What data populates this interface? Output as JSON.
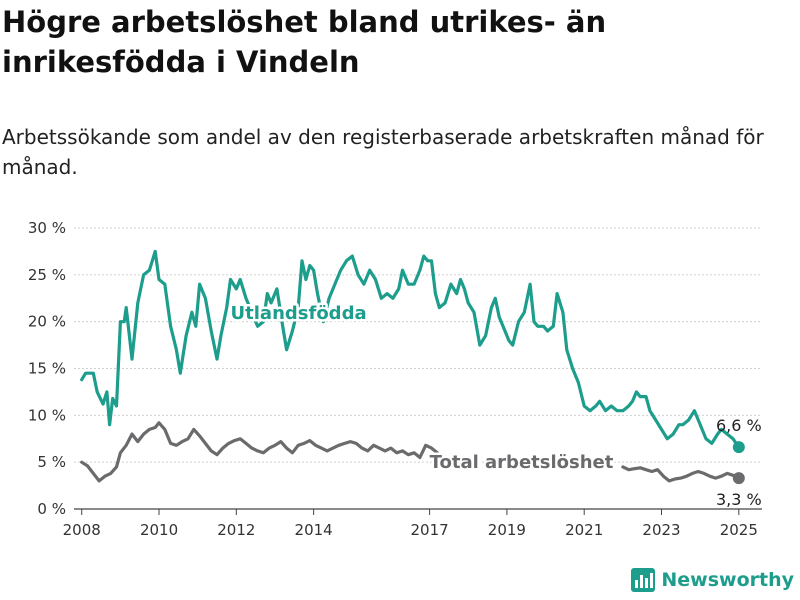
{
  "title": "Högre arbetslöshet bland utrikes- än inrikesfödda i Vindeln",
  "subtitle": "Arbetssökande som andel av den registerbaserade arbetskraften månad för månad.",
  "logo_text": "Newsworthy",
  "logo_icon": "bar-chart-icon",
  "chart_data": {
    "type": "line",
    "title": "",
    "xlabel": "",
    "ylabel": "",
    "ylim": [
      0,
      30
    ],
    "xlim": [
      2007.8,
      2025.6
    ],
    "yticks": [
      0,
      5,
      10,
      15,
      20,
      25,
      30
    ],
    "ytick_labels": [
      "0 %",
      "5 %",
      "10 %",
      "15 %",
      "20 %",
      "25 %",
      "30 %"
    ],
    "xticks": [
      2008,
      2010,
      2012,
      2014,
      2017,
      2019,
      2021,
      2023,
      2025
    ],
    "xtick_labels": [
      "2008",
      "2010",
      "2012",
      "2014",
      "2017",
      "2019",
      "2021",
      "2023",
      "2025"
    ],
    "grid": "horizontal",
    "legend": "inline labels",
    "series": [
      {
        "name": "Utlandsfödda",
        "color": "#1d9d8c",
        "end_label": "6,6 %",
        "points": [
          [
            2008.0,
            13.8
          ],
          [
            2008.1,
            14.5
          ],
          [
            2008.3,
            14.5
          ],
          [
            2008.4,
            12.5
          ],
          [
            2008.55,
            11.2
          ],
          [
            2008.65,
            12.5
          ],
          [
            2008.72,
            9.0
          ],
          [
            2008.8,
            11.8
          ],
          [
            2008.9,
            11.0
          ],
          [
            2009.0,
            20.0
          ],
          [
            2009.1,
            20.0
          ],
          [
            2009.15,
            21.5
          ],
          [
            2009.3,
            16.0
          ],
          [
            2009.45,
            22.0
          ],
          [
            2009.6,
            25.0
          ],
          [
            2009.75,
            25.5
          ],
          [
            2009.9,
            27.5
          ],
          [
            2010.0,
            24.5
          ],
          [
            2010.15,
            24.0
          ],
          [
            2010.3,
            19.5
          ],
          [
            2010.45,
            17.0
          ],
          [
            2010.55,
            14.5
          ],
          [
            2010.7,
            18.5
          ],
          [
            2010.85,
            21.0
          ],
          [
            2010.95,
            19.5
          ],
          [
            2011.05,
            24.0
          ],
          [
            2011.2,
            22.5
          ],
          [
            2011.35,
            19.0
          ],
          [
            2011.5,
            16.0
          ],
          [
            2011.6,
            18.5
          ],
          [
            2011.75,
            21.5
          ],
          [
            2011.85,
            24.5
          ],
          [
            2012.0,
            23.5
          ],
          [
            2012.1,
            24.5
          ],
          [
            2012.25,
            22.5
          ],
          [
            2012.4,
            21.0
          ],
          [
            2012.55,
            19.5
          ],
          [
            2012.7,
            20.0
          ],
          [
            2012.8,
            23.0
          ],
          [
            2012.9,
            22.0
          ],
          [
            2013.05,
            23.5
          ],
          [
            2013.2,
            19.5
          ],
          [
            2013.3,
            17.0
          ],
          [
            2013.45,
            19.0
          ],
          [
            2013.6,
            21.5
          ],
          [
            2013.7,
            26.5
          ],
          [
            2013.8,
            24.5
          ],
          [
            2013.9,
            26.0
          ],
          [
            2014.0,
            25.5
          ],
          [
            2014.1,
            23.0
          ],
          [
            2014.25,
            20.0
          ],
          [
            2014.4,
            22.5
          ],
          [
            2014.55,
            24.0
          ],
          [
            2014.7,
            25.5
          ],
          [
            2014.85,
            26.5
          ],
          [
            2015.0,
            27.0
          ],
          [
            2015.15,
            25.0
          ],
          [
            2015.3,
            24.0
          ],
          [
            2015.45,
            25.5
          ],
          [
            2015.6,
            24.5
          ],
          [
            2015.75,
            22.5
          ],
          [
            2015.9,
            23.0
          ],
          [
            2016.05,
            22.5
          ],
          [
            2016.2,
            23.5
          ],
          [
            2016.3,
            25.5
          ],
          [
            2016.45,
            24.0
          ],
          [
            2016.6,
            24.0
          ],
          [
            2016.75,
            25.5
          ],
          [
            2016.85,
            27.0
          ],
          [
            2016.95,
            26.5
          ],
          [
            2017.05,
            26.5
          ],
          [
            2017.15,
            23.0
          ],
          [
            2017.25,
            21.5
          ],
          [
            2017.4,
            22.0
          ],
          [
            2017.55,
            24.0
          ],
          [
            2017.7,
            23.0
          ],
          [
            2017.8,
            24.5
          ],
          [
            2017.9,
            23.5
          ],
          [
            2018.0,
            22.0
          ],
          [
            2018.15,
            21.0
          ],
          [
            2018.3,
            17.5
          ],
          [
            2018.45,
            18.5
          ],
          [
            2018.6,
            21.5
          ],
          [
            2018.7,
            22.5
          ],
          [
            2018.8,
            20.5
          ],
          [
            2018.95,
            19.0
          ],
          [
            2019.05,
            18.0
          ],
          [
            2019.15,
            17.5
          ],
          [
            2019.3,
            20.0
          ],
          [
            2019.45,
            21.0
          ],
          [
            2019.6,
            24.0
          ],
          [
            2019.7,
            20.0
          ],
          [
            2019.8,
            19.5
          ],
          [
            2019.95,
            19.5
          ],
          [
            2020.05,
            19.0
          ],
          [
            2020.2,
            19.5
          ],
          [
            2020.3,
            23.0
          ],
          [
            2020.45,
            21.0
          ],
          [
            2020.55,
            17.0
          ],
          [
            2020.7,
            15.0
          ],
          [
            2020.85,
            13.5
          ],
          [
            2021.0,
            11.0
          ],
          [
            2021.15,
            10.5
          ],
          [
            2021.3,
            11.0
          ],
          [
            2021.4,
            11.5
          ],
          [
            2021.55,
            10.5
          ],
          [
            2021.7,
            11.0
          ],
          [
            2021.85,
            10.5
          ],
          [
            2022.0,
            10.5
          ],
          [
            2022.15,
            11.0
          ],
          [
            2022.25,
            11.5
          ],
          [
            2022.35,
            12.5
          ],
          [
            2022.45,
            12.0
          ],
          [
            2022.6,
            12.0
          ],
          [
            2022.7,
            10.5
          ],
          [
            2022.85,
            9.5
          ],
          [
            2023.0,
            8.5
          ],
          [
            2023.15,
            7.5
          ],
          [
            2023.3,
            8.0
          ],
          [
            2023.45,
            9.0
          ],
          [
            2023.55,
            9.0
          ],
          [
            2023.7,
            9.5
          ],
          [
            2023.85,
            10.5
          ],
          [
            2024.0,
            9.0
          ],
          [
            2024.15,
            7.5
          ],
          [
            2024.3,
            7.0
          ],
          [
            2024.45,
            8.0
          ],
          [
            2024.55,
            8.5
          ],
          [
            2024.7,
            8.0
          ],
          [
            2024.85,
            7.5
          ],
          [
            2025.0,
            6.6
          ]
        ]
      },
      {
        "name": "Total arbetslöshet",
        "color": "#6b6b6e",
        "end_label": "3,3 %",
        "points": [
          [
            2008.0,
            5.0
          ],
          [
            2008.15,
            4.6
          ],
          [
            2008.3,
            3.8
          ],
          [
            2008.45,
            3.0
          ],
          [
            2008.6,
            3.5
          ],
          [
            2008.75,
            3.8
          ],
          [
            2008.9,
            4.5
          ],
          [
            2009.0,
            6.0
          ],
          [
            2009.15,
            6.8
          ],
          [
            2009.3,
            8.0
          ],
          [
            2009.45,
            7.2
          ],
          [
            2009.6,
            8.0
          ],
          [
            2009.75,
            8.5
          ],
          [
            2009.9,
            8.7
          ],
          [
            2010.0,
            9.2
          ],
          [
            2010.15,
            8.5
          ],
          [
            2010.3,
            7.0
          ],
          [
            2010.45,
            6.8
          ],
          [
            2010.6,
            7.2
          ],
          [
            2010.75,
            7.5
          ],
          [
            2010.9,
            8.5
          ],
          [
            2011.05,
            7.8
          ],
          [
            2011.2,
            7.0
          ],
          [
            2011.35,
            6.2
          ],
          [
            2011.5,
            5.8
          ],
          [
            2011.65,
            6.5
          ],
          [
            2011.8,
            7.0
          ],
          [
            2011.95,
            7.3
          ],
          [
            2012.1,
            7.5
          ],
          [
            2012.25,
            7.0
          ],
          [
            2012.4,
            6.5
          ],
          [
            2012.55,
            6.2
          ],
          [
            2012.7,
            6.0
          ],
          [
            2012.85,
            6.5
          ],
          [
            2013.0,
            6.8
          ],
          [
            2013.15,
            7.2
          ],
          [
            2013.3,
            6.5
          ],
          [
            2013.45,
            6.0
          ],
          [
            2013.6,
            6.8
          ],
          [
            2013.75,
            7.0
          ],
          [
            2013.9,
            7.3
          ],
          [
            2014.05,
            6.8
          ],
          [
            2014.2,
            6.5
          ],
          [
            2014.35,
            6.2
          ],
          [
            2014.5,
            6.5
          ],
          [
            2014.65,
            6.8
          ],
          [
            2014.8,
            7.0
          ],
          [
            2014.95,
            7.2
          ],
          [
            2015.1,
            7.0
          ],
          [
            2015.25,
            6.5
          ],
          [
            2015.4,
            6.2
          ],
          [
            2015.55,
            6.8
          ],
          [
            2015.7,
            6.5
          ],
          [
            2015.85,
            6.2
          ],
          [
            2016.0,
            6.5
          ],
          [
            2016.15,
            6.0
          ],
          [
            2016.3,
            6.2
          ],
          [
            2016.45,
            5.8
          ],
          [
            2016.6,
            6.0
          ],
          [
            2016.75,
            5.5
          ],
          [
            2016.9,
            6.8
          ],
          [
            2017.05,
            6.5
          ],
          [
            2017.2,
            6.0
          ],
          [
            2022.0,
            4.5
          ],
          [
            2022.15,
            4.2
          ],
          [
            2022.3,
            4.3
          ],
          [
            2022.45,
            4.4
          ],
          [
            2022.6,
            4.2
          ],
          [
            2022.75,
            4.0
          ],
          [
            2022.9,
            4.2
          ],
          [
            2023.05,
            3.5
          ],
          [
            2023.2,
            3.0
          ],
          [
            2023.35,
            3.2
          ],
          [
            2023.5,
            3.3
          ],
          [
            2023.65,
            3.5
          ],
          [
            2023.8,
            3.8
          ],
          [
            2023.95,
            4.0
          ],
          [
            2024.1,
            3.8
          ],
          [
            2024.25,
            3.5
          ],
          [
            2024.4,
            3.3
          ],
          [
            2024.55,
            3.5
          ],
          [
            2024.7,
            3.8
          ],
          [
            2024.85,
            3.6
          ],
          [
            2025.0,
            3.3
          ]
        ]
      }
    ]
  }
}
